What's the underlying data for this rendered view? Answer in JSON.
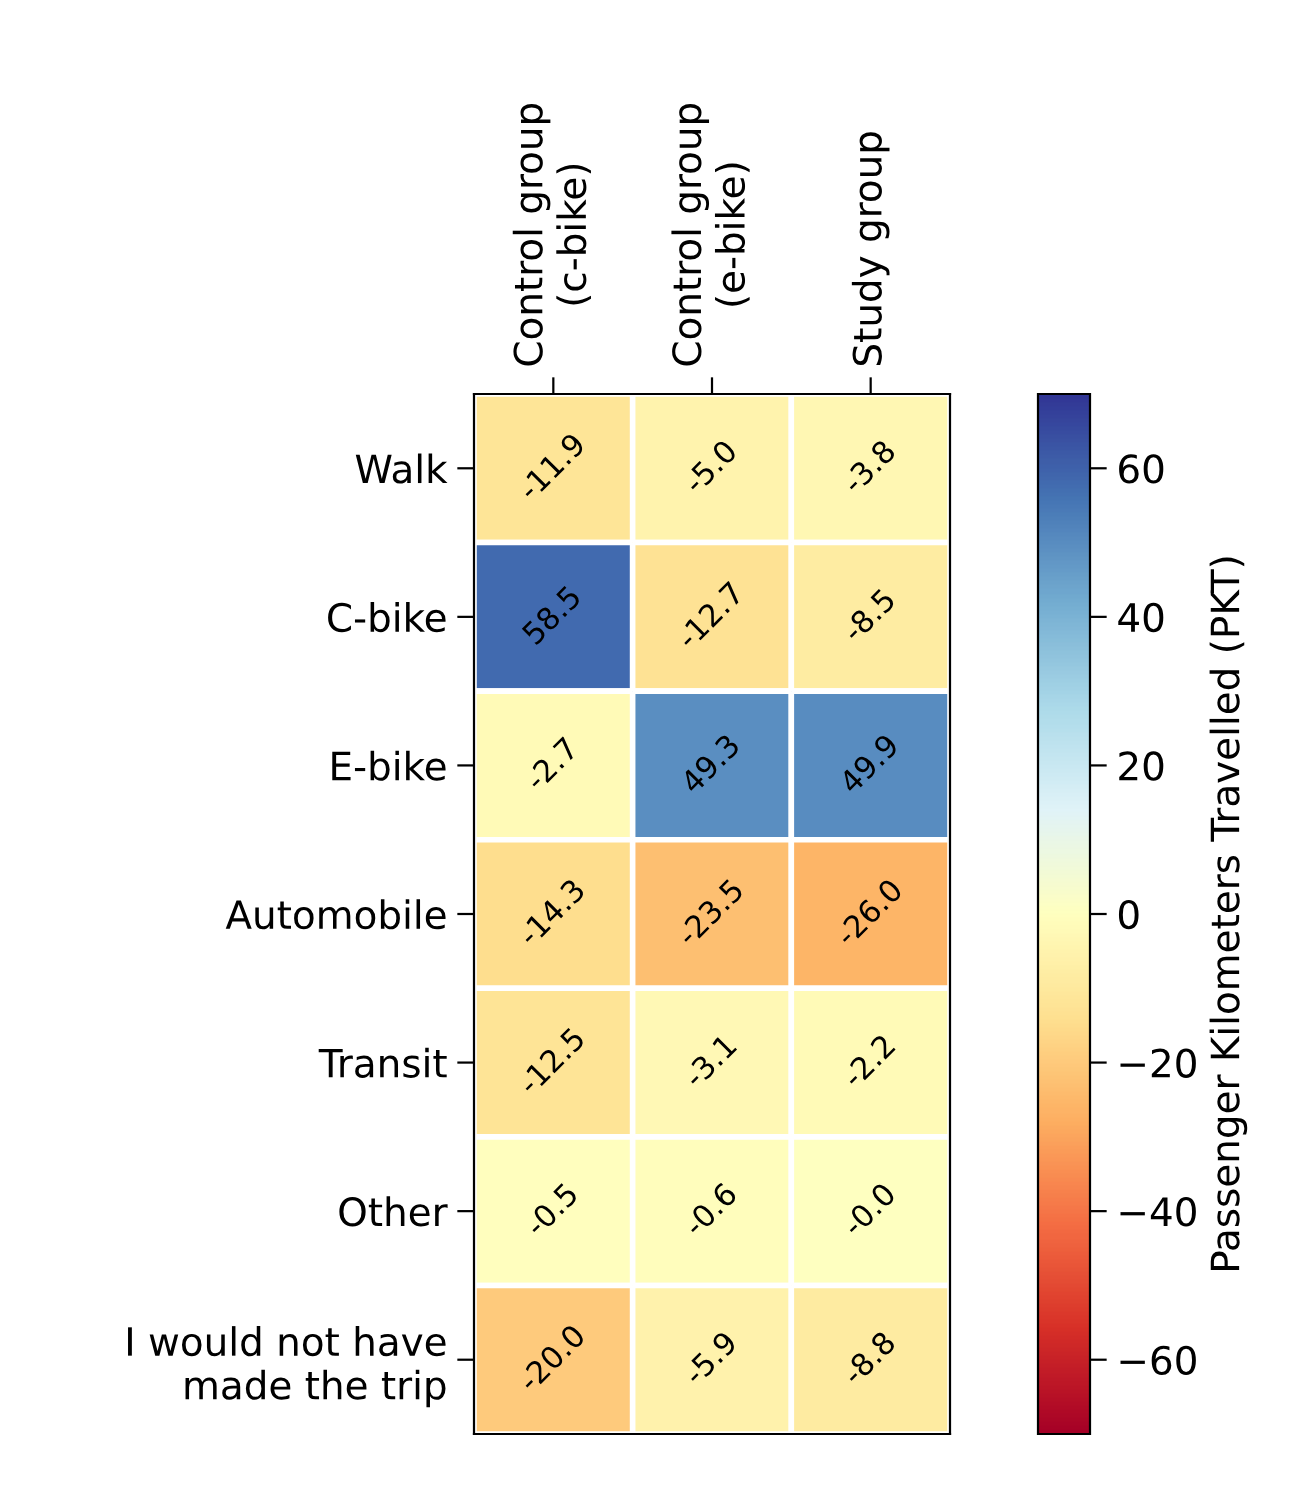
{
  "chart_data": {
    "type": "heatmap",
    "categories": [
      "Control group\n(c-bike)",
      "Control group\n(e-bike)",
      "Study group"
    ],
    "y_categories": [
      "Walk",
      "C-bike",
      "E-bike",
      "Automobile",
      "Transit",
      "Other",
      "I would not have\nmade the trip"
    ],
    "cells": [
      [
        -11.9,
        -5.0,
        -3.8
      ],
      [
        58.5,
        -12.7,
        -8.5
      ],
      [
        -2.7,
        49.3,
        49.9
      ],
      [
        -14.3,
        -23.5,
        -26.0
      ],
      [
        -12.5,
        -3.1,
        -2.2
      ],
      [
        -0.5,
        -0.6,
        -0.0
      ],
      [
        -20.0,
        -5.9,
        -8.8
      ]
    ],
    "cell_labels": [
      [
        "-11.9",
        "-5.0",
        "-3.8"
      ],
      [
        "58.5",
        "-12.7",
        "-8.5"
      ],
      [
        "-2.7",
        "49.3",
        "49.9"
      ],
      [
        "-14.3",
        "-23.5",
        "-26.0"
      ],
      [
        "-12.5",
        "-3.1",
        "-2.2"
      ],
      [
        "-0.5",
        "-0.6",
        "-0.0"
      ],
      [
        "-20.0",
        "-5.9",
        "-8.8"
      ]
    ],
    "clabel": "Passenger Kilometers Travelled (PKT)",
    "clim": [
      -70,
      70
    ],
    "cticks": [
      {
        "value": -60,
        "label": "−60"
      },
      {
        "value": -40,
        "label": "−40"
      },
      {
        "value": -20,
        "label": "−20"
      },
      {
        "value": 0,
        "label": "0"
      },
      {
        "value": 20,
        "label": "20"
      },
      {
        "value": 40,
        "label": "40"
      },
      {
        "value": 60,
        "label": "60"
      }
    ]
  }
}
